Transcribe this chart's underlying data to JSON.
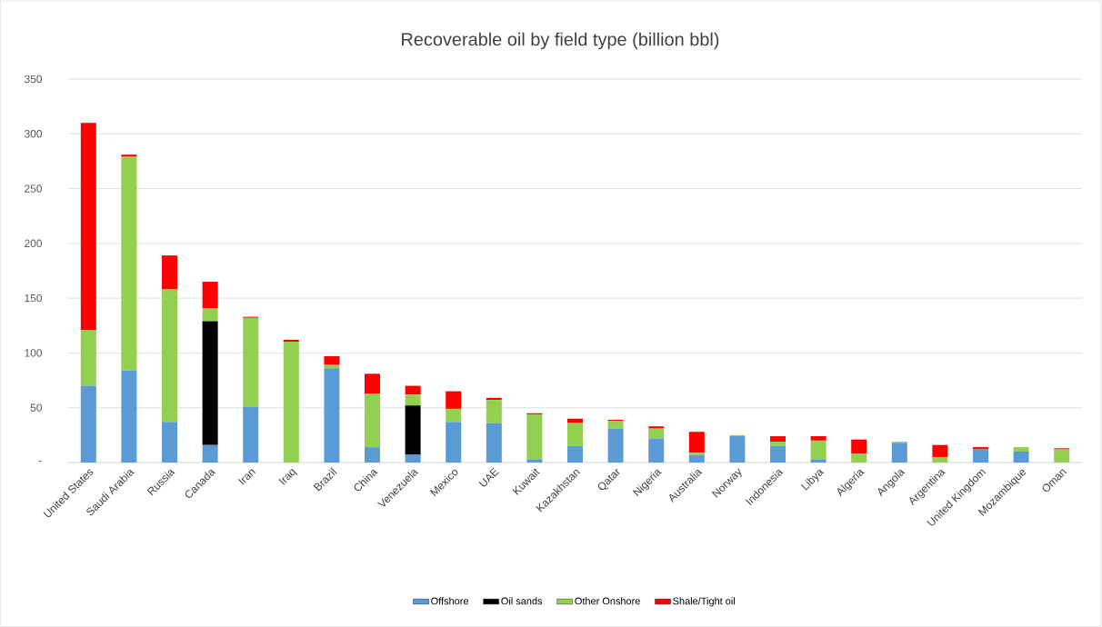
{
  "chart_data": {
    "type": "bar",
    "title": "Recoverable oil by field type (billion bbl)",
    "categories": [
      "United States",
      "Saudi Arabia",
      "Russia",
      "Canada",
      "Iran",
      "Iraq",
      "Brazil",
      "China",
      "Venezuela",
      "Mexico",
      "UAE",
      "Kuwait",
      "Kazakhstan",
      "Qatar",
      "Nigeria",
      "Australia",
      "Norway",
      "Indonesia",
      "Libya",
      "Algeria",
      "Angola",
      "Argentina",
      "United Kingdom",
      "Mozambique",
      "Oman"
    ],
    "stacked": true,
    "series": [
      {
        "name": "Offshore",
        "color": "#5b9bd5",
        "values": [
          70,
          84,
          37,
          16,
          51,
          0,
          86,
          14,
          7,
          37,
          36,
          3,
          15,
          31,
          22,
          7,
          24,
          15,
          3,
          0,
          18,
          0,
          12,
          10,
          0
        ]
      },
      {
        "name": "Oil sands",
        "color": "#000000",
        "values": [
          0,
          0,
          0,
          113,
          0,
          0,
          0,
          0,
          45,
          0,
          0,
          0,
          0,
          0,
          0,
          0,
          0,
          0,
          0,
          0,
          0,
          0,
          0,
          0,
          0
        ]
      },
      {
        "name": "Other Onshore",
        "color": "#92d050",
        "values": [
          51,
          195,
          121,
          12,
          81,
          110,
          3,
          49,
          10,
          12,
          21,
          41,
          21,
          7,
          9,
          2,
          1,
          4,
          17,
          8,
          1,
          5,
          0,
          4,
          12
        ]
      },
      {
        "name": "Shale/Tight oil",
        "color": "#ff0000",
        "values": [
          189,
          2,
          31,
          24,
          1,
          2,
          8,
          18,
          8,
          16,
          2,
          1,
          4,
          1,
          2,
          19,
          0,
          5,
          4,
          13,
          0,
          11,
          2,
          0,
          1
        ]
      }
    ],
    "ylim": [
      0,
      350
    ],
    "yticks": [
      {
        "value": 0,
        "label": "-"
      },
      50,
      100,
      150,
      200,
      250,
      300,
      350
    ],
    "grid": "y",
    "legend": "bottom"
  }
}
